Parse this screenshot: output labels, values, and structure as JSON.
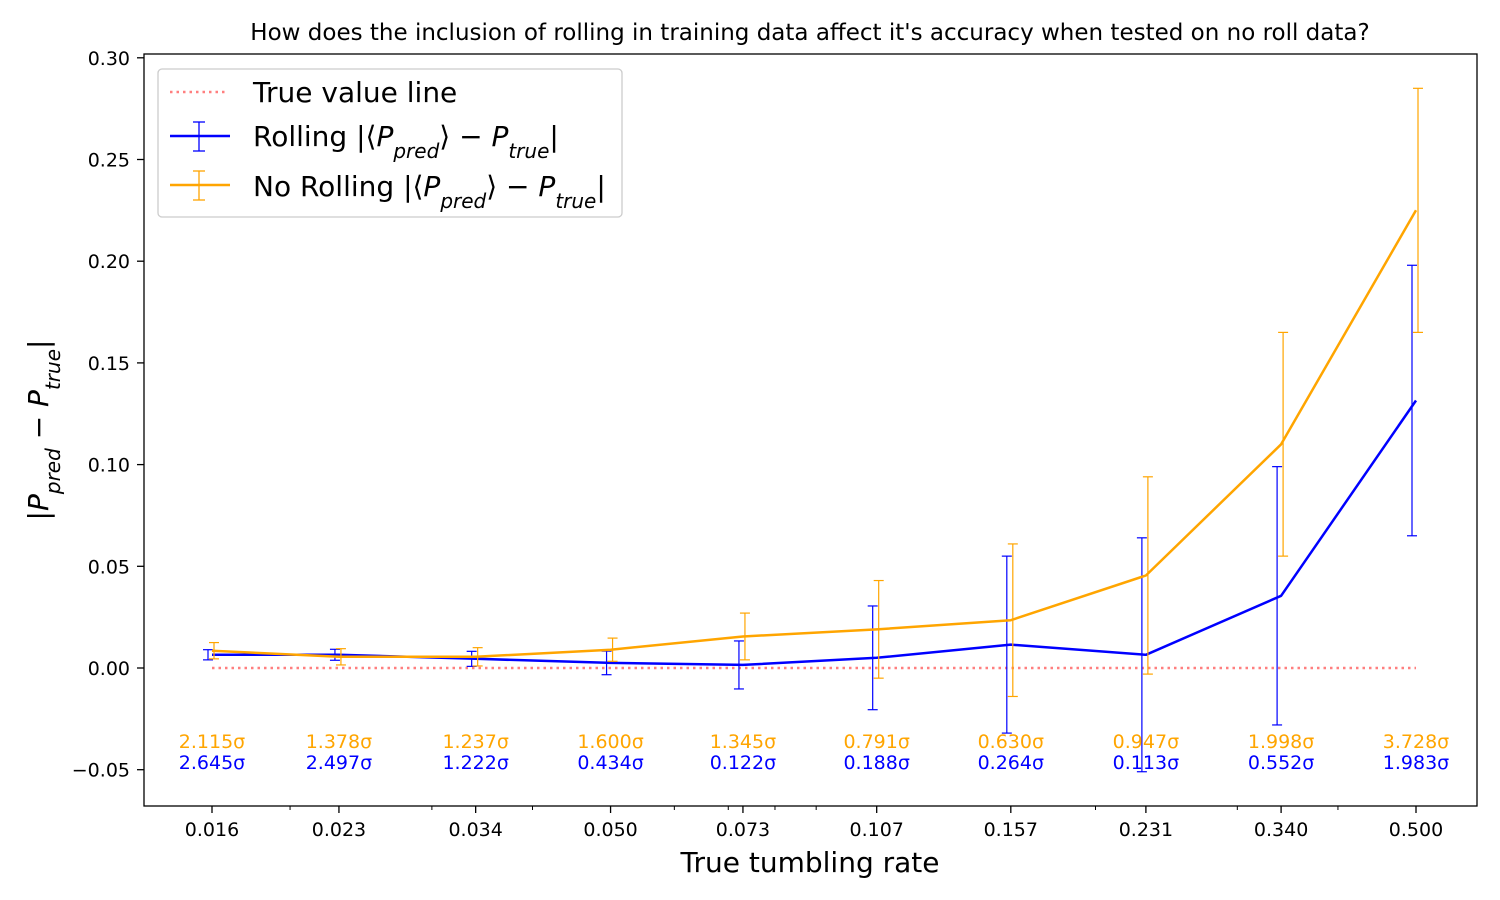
{
  "chart_data": {
    "type": "line",
    "title": "How does the inclusion of rolling in training data affect it's accuracy when tested on no roll data?",
    "xlabel": "True tumbling rate",
    "ylabel": "|P_pred − P_true|",
    "x_scale": "log",
    "x": [
      0.016,
      0.023,
      0.034,
      0.05,
      0.073,
      0.107,
      0.157,
      0.231,
      0.34,
      0.5
    ],
    "x_tick_labels": [
      "0.016",
      "0.023",
      "0.034",
      "0.050",
      "0.073",
      "0.107",
      "0.157",
      "0.231",
      "0.340",
      "0.500"
    ],
    "y_ticks": [
      -0.05,
      0.0,
      0.05,
      0.1,
      0.15,
      0.2,
      0.25,
      0.3
    ],
    "y_tick_labels": [
      "−0.05",
      "0.00",
      "0.05",
      "0.10",
      "0.15",
      "0.20",
      "0.25",
      "0.30"
    ],
    "ylim": [
      -0.068,
      0.302
    ],
    "grid": false,
    "legend_position": "top-left",
    "series": [
      {
        "name": "True value line",
        "style": "dotted",
        "color": "#ff7f7f",
        "values": [
          0,
          0,
          0,
          0,
          0,
          0,
          0,
          0,
          0,
          0
        ]
      },
      {
        "name": "Rolling |⟨P_pred⟩ − P_true|",
        "style": "solid",
        "color": "#0000ff",
        "values": [
          0.0065,
          0.0065,
          0.0045,
          0.0025,
          0.0015,
          0.005,
          0.0115,
          0.0065,
          0.0355,
          0.1315
        ],
        "errors": [
          0.0025,
          0.0027,
          0.0037,
          0.0058,
          0.0118,
          0.0255,
          0.0435,
          0.0575,
          0.0635,
          0.0665
        ],
        "sigma_labels": [
          "2.645σ",
          "2.497σ",
          "1.222σ",
          "0.434σ",
          "0.122σ",
          "0.188σ",
          "0.264σ",
          "0.113σ",
          "0.552σ",
          "1.983σ"
        ]
      },
      {
        "name": "No Rolling |⟨P_pred⟩ − P_true|",
        "style": "solid",
        "color": "#ffa500",
        "values": [
          0.0085,
          0.0055,
          0.0055,
          0.009,
          0.0155,
          0.019,
          0.0235,
          0.0455,
          0.11,
          0.225
        ],
        "errors": [
          0.004,
          0.004,
          0.0045,
          0.0057,
          0.0115,
          0.024,
          0.0375,
          0.0485,
          0.055,
          0.06
        ],
        "sigma_labels": [
          "2.115σ",
          "1.378σ",
          "1.237σ",
          "1.600σ",
          "1.345σ",
          "0.791σ",
          "0.630σ",
          "0.947σ",
          "1.998σ",
          "3.728σ"
        ]
      }
    ]
  }
}
